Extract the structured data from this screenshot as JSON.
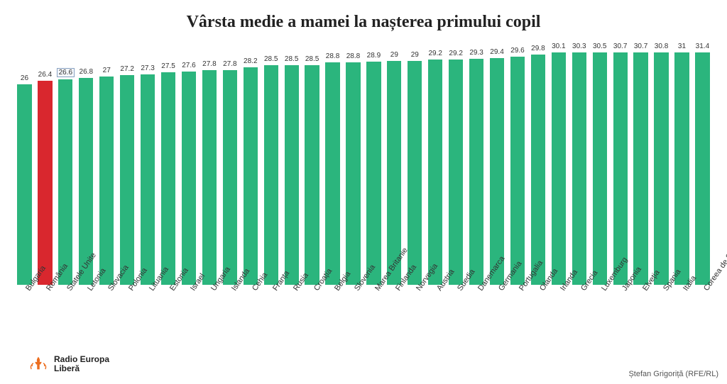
{
  "chart": {
    "type": "bar",
    "title": "Vârsta medie a mamei la nașterea primului copil",
    "title_fontsize": 24,
    "background_color": "#ffffff",
    "bar_default_color": "#2bb57d",
    "bar_highlight_color": "#d9272e",
    "value_fontsize": 10,
    "label_fontsize": 11,
    "label_rotation_deg": -55,
    "bar_width_ratio": 0.7,
    "value_box_index": 2,
    "highlight_index": 1,
    "y_domain_min": 0,
    "y_domain_max": 31.4,
    "data": [
      {
        "label": "Bulgaria",
        "value": 26
      },
      {
        "label": "România",
        "value": 26.4
      },
      {
        "label": "Statele Unite",
        "value": 26.6
      },
      {
        "label": "Letonia",
        "value": 26.8
      },
      {
        "label": "Slovacia",
        "value": 27
      },
      {
        "label": "Polonia",
        "value": 27.2
      },
      {
        "label": "Lituania",
        "value": 27.3
      },
      {
        "label": "Estonia",
        "value": 27.5
      },
      {
        "label": "Israel",
        "value": 27.6
      },
      {
        "label": "Ungaria",
        "value": 27.8
      },
      {
        "label": "Islanda",
        "value": 27.8
      },
      {
        "label": "Cehia",
        "value": 28.2
      },
      {
        "label": "Franța",
        "value": 28.5
      },
      {
        "label": "Rusia",
        "value": 28.5
      },
      {
        "label": "Croația",
        "value": 28.5
      },
      {
        "label": "Belgia",
        "value": 28.8
      },
      {
        "label": "Slovenia",
        "value": 28.8
      },
      {
        "label": "Marea Britanie",
        "value": 28.9
      },
      {
        "label": "Finlanda",
        "value": 29
      },
      {
        "label": "Norvegia",
        "value": 29
      },
      {
        "label": "Austria",
        "value": 29.2
      },
      {
        "label": "Suedia",
        "value": 29.2
      },
      {
        "label": "Danemarca",
        "value": 29.3
      },
      {
        "label": "Germania",
        "value": 29.4
      },
      {
        "label": "Portugalia",
        "value": 29.6
      },
      {
        "label": "Olanda",
        "value": 29.8
      },
      {
        "label": "Irlanda",
        "value": 30.1
      },
      {
        "label": "Grecia",
        "value": 30.3
      },
      {
        "label": "Luxemburg",
        "value": 30.5
      },
      {
        "label": "Japonia",
        "value": 30.7
      },
      {
        "label": "Elveția",
        "value": 30.7
      },
      {
        "label": "Spania",
        "value": 30.8
      },
      {
        "label": "Italia",
        "value": 31
      },
      {
        "label": "Coreea de Sud",
        "value": 31.4
      }
    ]
  },
  "logo": {
    "text_line1": "Radio Europa",
    "text_line2": "Liberă",
    "icon_color": "#ec6d1e"
  },
  "credit": "Ștefan Grigoriță (RFE/RL)"
}
